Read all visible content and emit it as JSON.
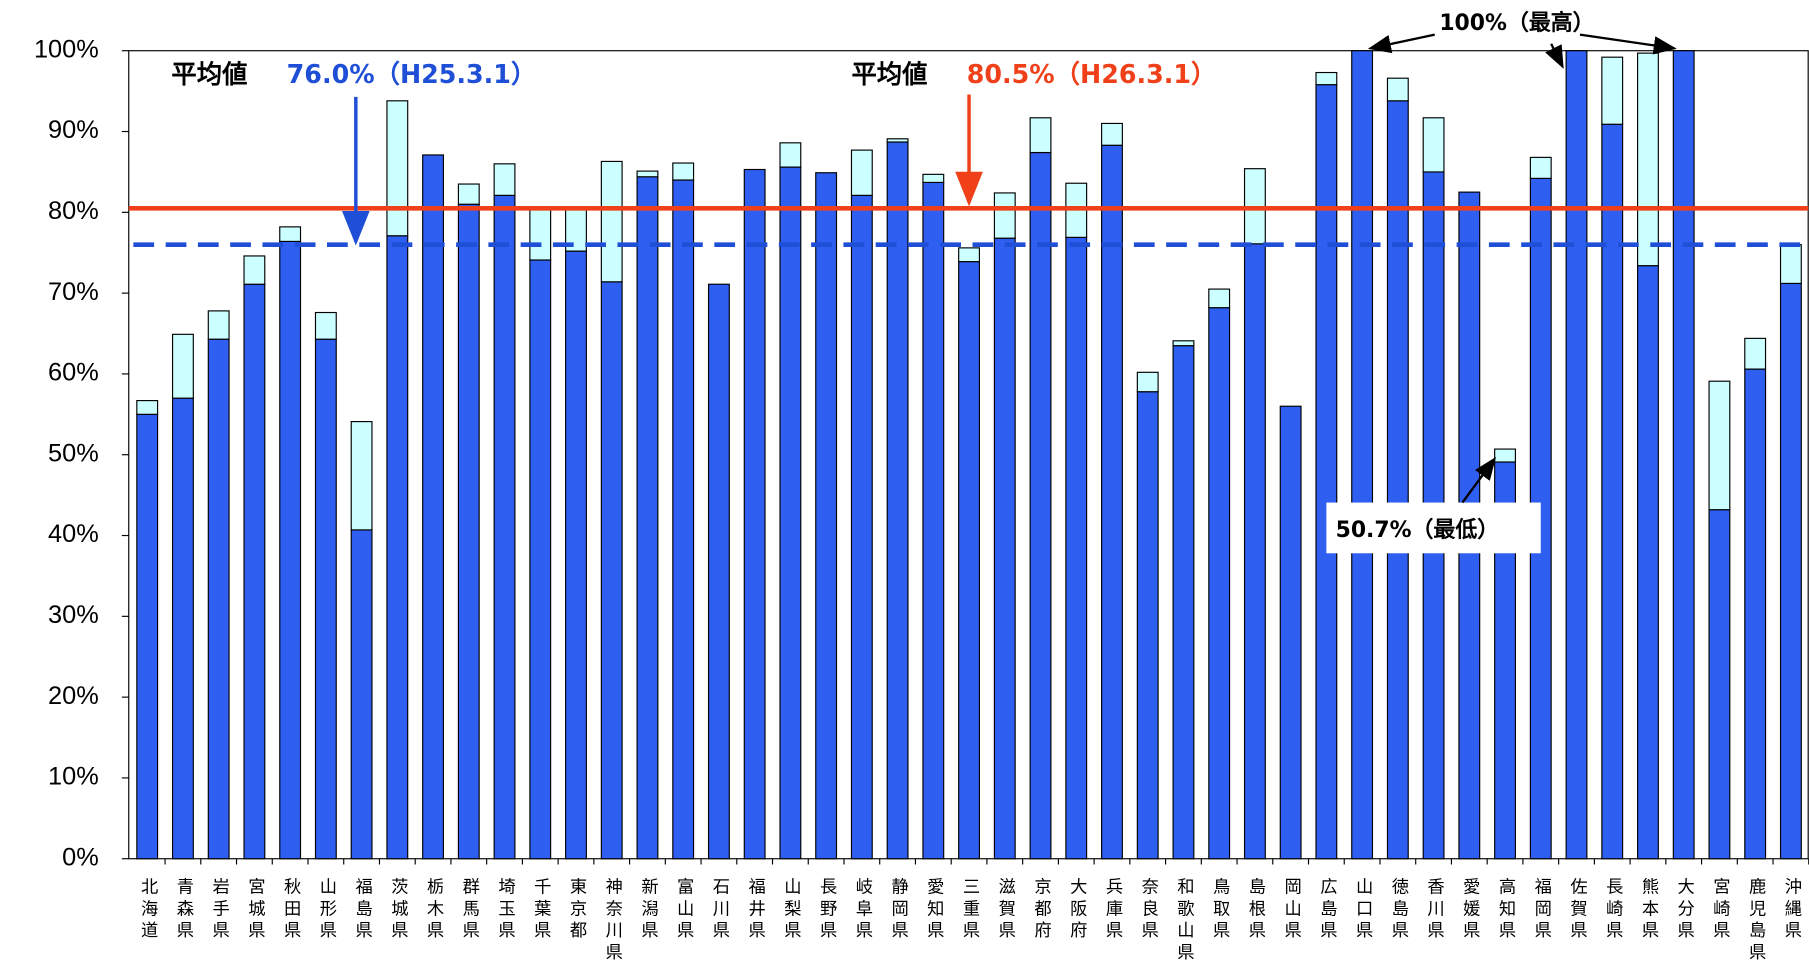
{
  "chart_data": {
    "type": "stacked_bar",
    "categories": [
      "北海道",
      "青森県",
      "岩手県",
      "宮城県",
      "秋田県",
      "山形県",
      "福島県",
      "茨城県",
      "栃木県",
      "群馬県",
      "埼玉県",
      "千葉県",
      "東京都",
      "神奈川県",
      "新潟県",
      "富山県",
      "石川県",
      "福井県",
      "山梨県",
      "長野県",
      "岐阜県",
      "静岡県",
      "愛知県",
      "三重県",
      "滋賀県",
      "京都府",
      "大阪府",
      "兵庫県",
      "奈良県",
      "和歌山県",
      "鳥取県",
      "島根県",
      "岡山県",
      "広島県",
      "山口県",
      "徳島県",
      "香川県",
      "愛媛県",
      "高知県",
      "福岡県",
      "佐賀県",
      "長崎県",
      "熊本県",
      "大分県",
      "宮崎県",
      "鹿児島県",
      "沖縄県"
    ],
    "series": [
      {
        "color": "#2e5ff0",
        "values": [
          55.0,
          57.0,
          64.3,
          71.1,
          76.4,
          64.3,
          40.7,
          77.1,
          87.1,
          81.0,
          82.1,
          74.1,
          75.2,
          71.4,
          84.4,
          84.0,
          71.1,
          85.3,
          85.6,
          84.9,
          82.1,
          88.7,
          83.7,
          73.9,
          76.8,
          87.4,
          76.9,
          88.3,
          57.8,
          63.5,
          68.2,
          76.1,
          56.0,
          95.8,
          100,
          93.8,
          85.0,
          82.5,
          49.1,
          84.2,
          100,
          90.9,
          73.4,
          100,
          43.2,
          60.6,
          71.2
        ]
      },
      {
        "color": "#ccffff",
        "values": [
          1.7,
          7.9,
          3.5,
          3.5,
          1.8,
          3.3,
          13.4,
          16.7,
          0,
          2.5,
          3.9,
          6.2,
          5.1,
          14.9,
          0.7,
          2.1,
          0,
          0,
          3.0,
          0,
          5.6,
          0.4,
          1.0,
          1.7,
          5.6,
          4.3,
          6.7,
          2.7,
          2.4,
          0.6,
          2.3,
          9.3,
          0,
          1.5,
          0,
          2.8,
          6.7,
          0,
          1.6,
          2.6,
          0,
          8.3,
          26.3,
          0,
          15.9,
          3.8,
          4.8
        ]
      }
    ],
    "ylim": [
      0,
      100
    ],
    "yticks": [
      {
        "value": 0,
        "label": "0%"
      },
      {
        "value": 10,
        "label": "10%"
      },
      {
        "value": 20,
        "label": "20%"
      },
      {
        "value": 30,
        "label": "30%"
      },
      {
        "value": 40,
        "label": "40%"
      },
      {
        "value": 50,
        "label": "50%"
      },
      {
        "value": 60,
        "label": "60%"
      },
      {
        "value": 70,
        "label": "70%"
      },
      {
        "value": 80,
        "label": "80%"
      },
      {
        "value": 90,
        "label": "90%"
      },
      {
        "value": 100,
        "label": "100%"
      }
    ],
    "reference_lines": [
      {
        "value": 76.0,
        "color": "#1f4fd6",
        "dashed": true,
        "label": "平均値",
        "value_label": "76.0%（H25.3.1）"
      },
      {
        "value": 80.5,
        "color": "#f0401a",
        "dashed": false,
        "label": "平均値",
        "value_label": "80.5%（H26.3.1）"
      }
    ],
    "annotations": [
      "100%（最高）",
      "50.7%（最低）"
    ]
  }
}
